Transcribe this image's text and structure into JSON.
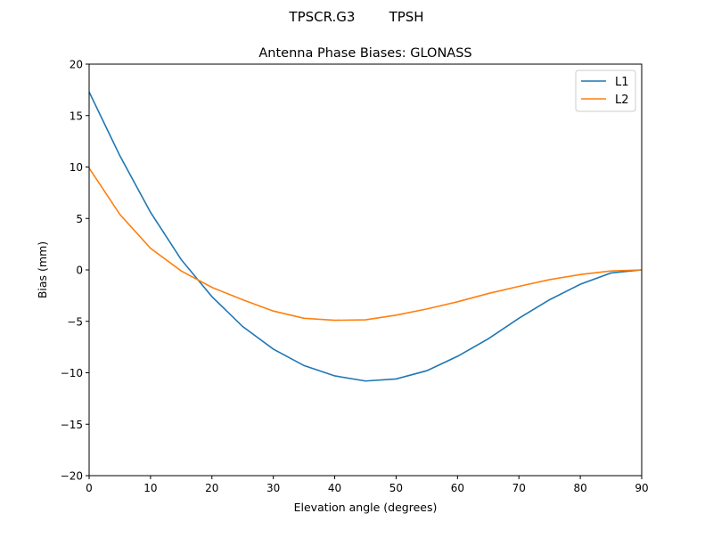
{
  "suptitle": "TPSCR.G3        TPSH",
  "chart_data": {
    "type": "line",
    "title": "Antenna Phase Biases: GLONASS",
    "xlabel": "Elevation angle (degrees)",
    "ylabel": "Bias (mm)",
    "xlim": [
      0,
      90
    ],
    "ylim": [
      -20,
      20
    ],
    "xticks": [
      0,
      10,
      20,
      30,
      40,
      50,
      60,
      70,
      80,
      90
    ],
    "yticks": [
      -20,
      -15,
      -10,
      -5,
      0,
      5,
      10,
      15,
      20
    ],
    "grid": false,
    "legend": "top-right",
    "x": [
      0,
      5,
      10,
      15,
      20,
      25,
      30,
      35,
      40,
      45,
      50,
      55,
      60,
      65,
      70,
      75,
      80,
      85,
      90
    ],
    "series": [
      {
        "name": "L1",
        "color": "#1f77b4",
        "values": [
          17.3,
          11.1,
          5.6,
          1.0,
          -2.6,
          -5.5,
          -7.7,
          -9.3,
          -10.3,
          -10.8,
          -10.6,
          -9.8,
          -8.4,
          -6.7,
          -4.7,
          -2.9,
          -1.4,
          -0.3,
          0.0
        ]
      },
      {
        "name": "L2",
        "color": "#ff7f0e",
        "values": [
          9.9,
          5.4,
          2.1,
          -0.1,
          -1.7,
          -2.9,
          -4.0,
          -4.7,
          -4.9,
          -4.85,
          -4.4,
          -3.8,
          -3.1,
          -2.3,
          -1.6,
          -0.95,
          -0.45,
          -0.1,
          0.0
        ]
      }
    ]
  }
}
